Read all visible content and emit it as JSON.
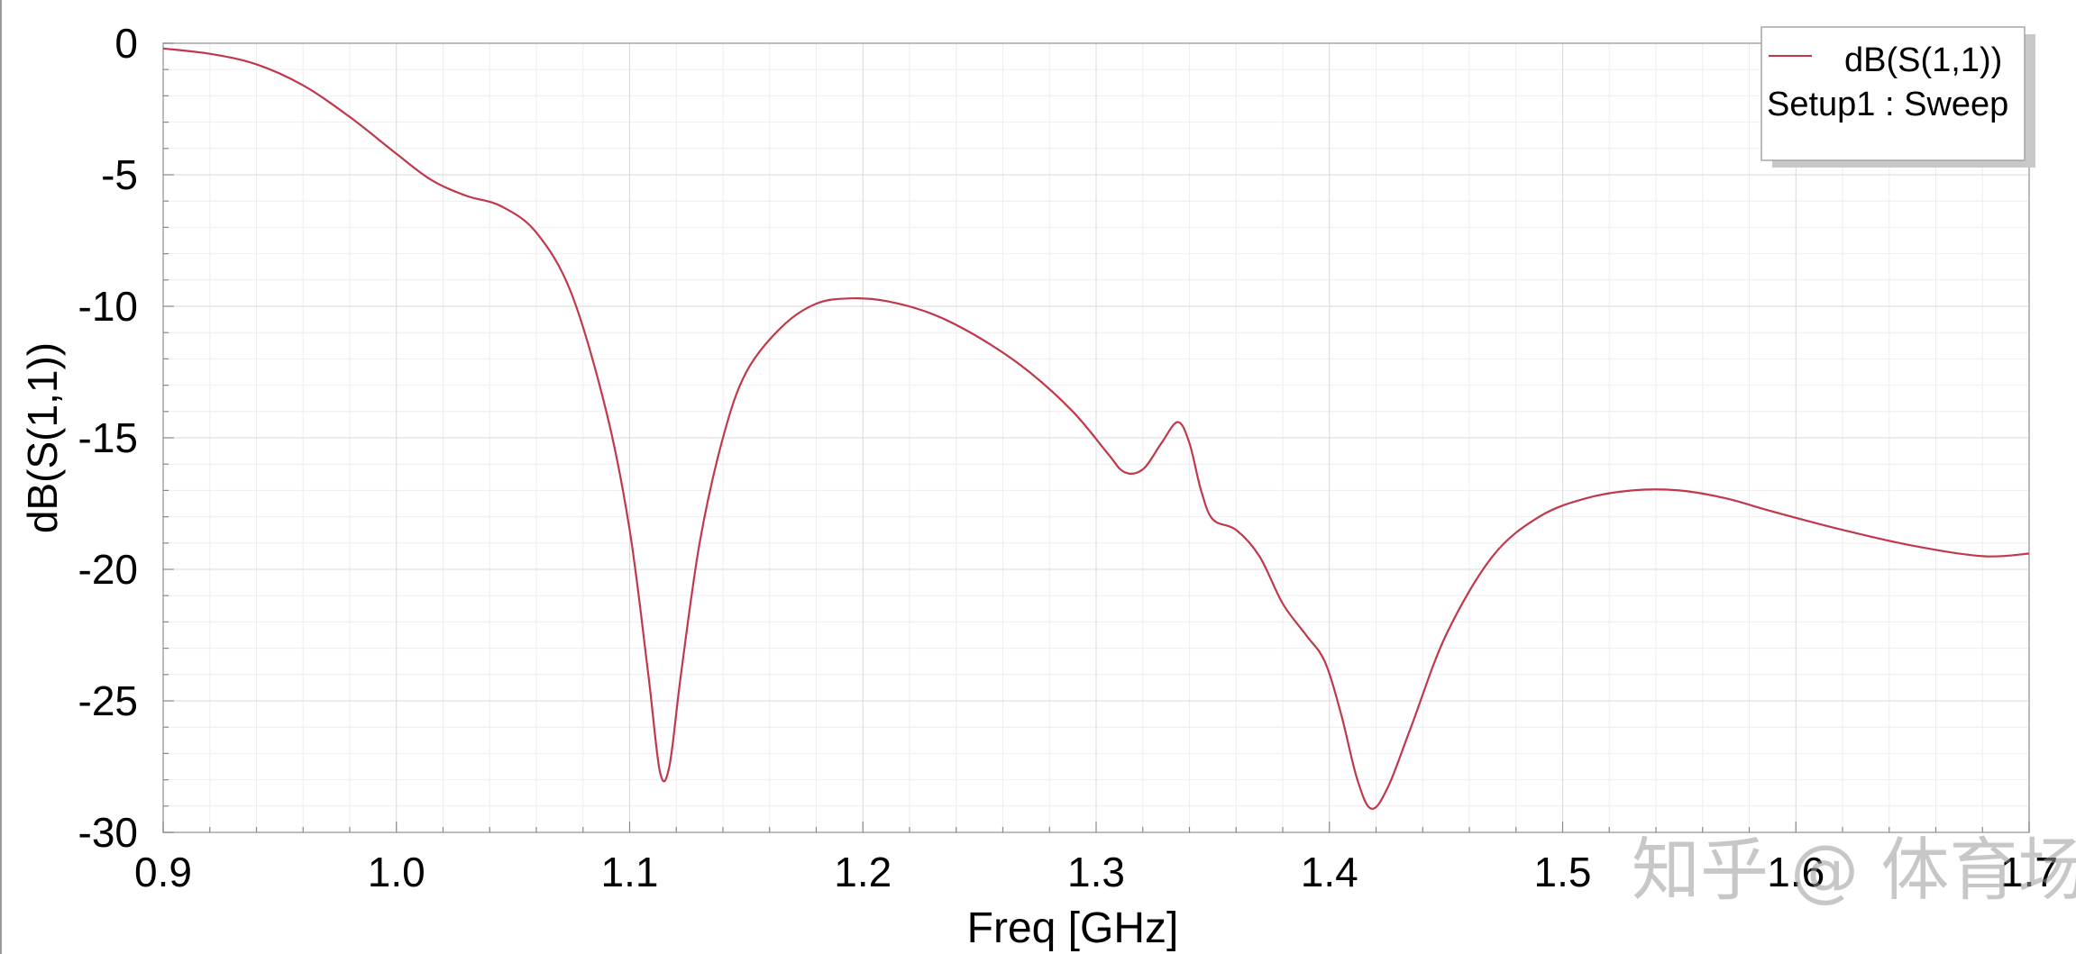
{
  "chart_data": {
    "type": "line",
    "title": "",
    "xlabel": "Freq [GHz]",
    "ylabel": "dB(S(1,1))",
    "xlim": [
      0.9,
      1.7
    ],
    "ylim": [
      -30,
      0
    ],
    "x_ticks": [
      "0.9",
      "1.0",
      "1.1",
      "1.2",
      "1.3",
      "1.4",
      "1.5",
      "1.6",
      "1.7"
    ],
    "y_ticks": [
      "0",
      "-5",
      "-10",
      "-15",
      "-20",
      "-25",
      "-30"
    ],
    "grid": true,
    "legend": {
      "placement": "top-right",
      "entries": [
        "dB(S(1,1))"
      ],
      "subtitle": "Setup1 : Sweep"
    },
    "series": [
      {
        "name": "dB(S(1,1))",
        "color": "#c0384a",
        "points": [
          [
            0.9,
            -0.2
          ],
          [
            0.92,
            -0.4
          ],
          [
            0.94,
            -0.8
          ],
          [
            0.96,
            -1.6
          ],
          [
            0.98,
            -2.8
          ],
          [
            1.0,
            -4.2
          ],
          [
            1.015,
            -5.2
          ],
          [
            1.03,
            -5.8
          ],
          [
            1.045,
            -6.2
          ],
          [
            1.06,
            -7.2
          ],
          [
            1.075,
            -9.5
          ],
          [
            1.09,
            -14.0
          ],
          [
            1.1,
            -18.5
          ],
          [
            1.108,
            -24.0
          ],
          [
            1.113,
            -27.7
          ],
          [
            1.117,
            -27.5
          ],
          [
            1.122,
            -24.0
          ],
          [
            1.13,
            -19.0
          ],
          [
            1.14,
            -15.0
          ],
          [
            1.15,
            -12.5
          ],
          [
            1.165,
            -10.8
          ],
          [
            1.18,
            -9.9
          ],
          [
            1.195,
            -9.7
          ],
          [
            1.21,
            -9.8
          ],
          [
            1.23,
            -10.3
          ],
          [
            1.25,
            -11.2
          ],
          [
            1.27,
            -12.4
          ],
          [
            1.29,
            -14.0
          ],
          [
            1.305,
            -15.6
          ],
          [
            1.312,
            -16.3
          ],
          [
            1.32,
            -16.2
          ],
          [
            1.328,
            -15.2
          ],
          [
            1.335,
            -14.4
          ],
          [
            1.34,
            -15.2
          ],
          [
            1.345,
            -17.0
          ],
          [
            1.35,
            -18.1
          ],
          [
            1.36,
            -18.5
          ],
          [
            1.37,
            -19.5
          ],
          [
            1.38,
            -21.3
          ],
          [
            1.39,
            -22.5
          ],
          [
            1.398,
            -23.5
          ],
          [
            1.405,
            -25.5
          ],
          [
            1.412,
            -28.0
          ],
          [
            1.418,
            -29.1
          ],
          [
            1.425,
            -28.3
          ],
          [
            1.435,
            -26.0
          ],
          [
            1.45,
            -22.5
          ],
          [
            1.47,
            -19.5
          ],
          [
            1.49,
            -18.0
          ],
          [
            1.51,
            -17.3
          ],
          [
            1.53,
            -17.0
          ],
          [
            1.55,
            -17.0
          ],
          [
            1.57,
            -17.3
          ],
          [
            1.59,
            -17.8
          ],
          [
            1.62,
            -18.5
          ],
          [
            1.65,
            -19.1
          ],
          [
            1.68,
            -19.5
          ],
          [
            1.7,
            -19.4
          ]
        ]
      }
    ]
  },
  "watermark": "知乎 @ 体育场",
  "colors": {
    "background": "#ffffff",
    "grid_major": "#d9d9d9",
    "grid_minor": "#eeeeee",
    "frame": "#a6a6a6",
    "series": "#c0384a"
  }
}
